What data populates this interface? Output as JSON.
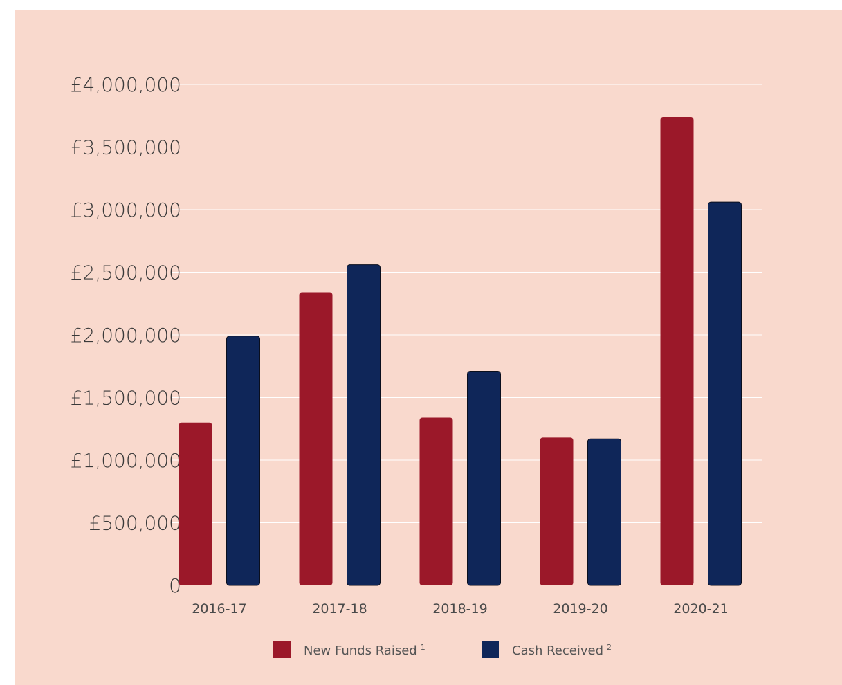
{
  "chart_data": {
    "type": "bar",
    "categories": [
      "2016-17",
      "2017-18",
      "2018-19",
      "2019-20",
      "2020-21"
    ],
    "series": [
      {
        "name": "New Funds Raised",
        "footnote": "1",
        "color": "#9b1829",
        "values": [
          1300000,
          2340000,
          1340000,
          1180000,
          3740000
        ]
      },
      {
        "name": "Cash Received",
        "footnote": "2",
        "color": "#0f2659",
        "values": [
          1990000,
          2560000,
          1710000,
          1170000,
          3060000
        ]
      }
    ],
    "yticks": [
      0,
      500000,
      1000000,
      1500000,
      2000000,
      2500000,
      3000000,
      3500000,
      4000000
    ],
    "ytick_labels": [
      "0",
      "£500,000",
      "£1,000,000",
      "£1,500,000",
      "£2,000,000",
      "£2,500,000",
      "£3,000,000",
      "£3,500,000",
      "£4,000,000"
    ],
    "ylim": [
      0,
      4000000
    ],
    "grid": true,
    "legend_position": "bottom-center",
    "background_color": "#f9d9cd",
    "grid_color": "#ffffff"
  }
}
